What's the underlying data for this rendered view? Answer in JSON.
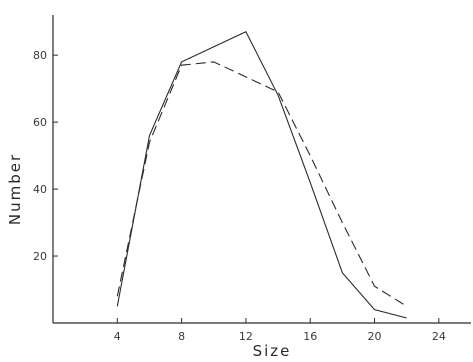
{
  "chart_data": {
    "type": "line",
    "xlabel": "Size",
    "ylabel": "Number",
    "xlim": [
      0,
      26
    ],
    "ylim": [
      0,
      92
    ],
    "x_ticks": [
      4,
      8,
      12,
      16,
      20,
      24
    ],
    "y_ticks": [
      20,
      40,
      60,
      80
    ],
    "grid": false,
    "series": [
      {
        "style": "solid",
        "x": [
          4,
          6,
          8,
          12,
          14,
          16,
          18,
          20,
          22
        ],
        "y": [
          5,
          56,
          78,
          87,
          68,
          42,
          15,
          4,
          1.5
        ]
      },
      {
        "style": "dashed",
        "x": [
          4,
          6,
          8,
          10,
          14,
          16,
          18,
          20,
          22
        ],
        "y": [
          8,
          54,
          77,
          78,
          69,
          50,
          30,
          11,
          5
        ]
      }
    ]
  }
}
